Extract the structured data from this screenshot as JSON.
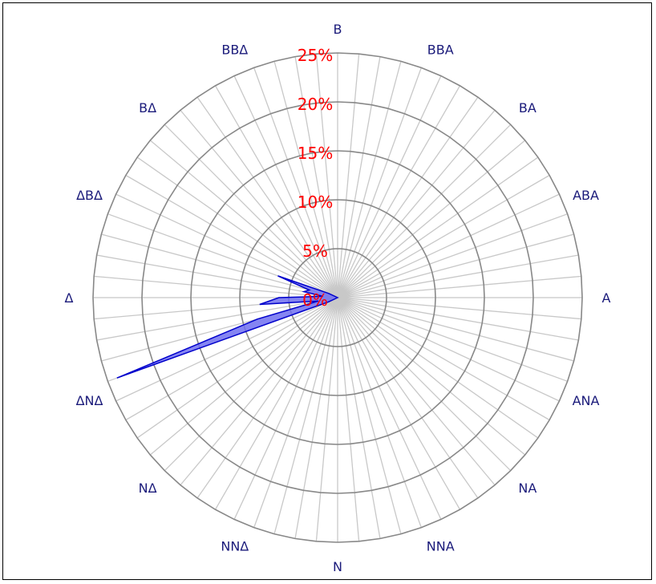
{
  "chart_data": {
    "type": "radar",
    "title": "",
    "direction_labels": [
      "B",
      "BBA",
      "BA",
      "ABA",
      "A",
      "ANA",
      "NA",
      "NNA",
      "N",
      "NNΔ",
      "NΔ",
      "ΔNΔ",
      "Δ",
      "ΔBΔ",
      "BΔ",
      "BBΔ"
    ],
    "ring_labels": [
      "0%",
      "5%",
      "10%",
      "15%",
      "20%",
      "25%"
    ],
    "rings": [
      5,
      10,
      15,
      20,
      25
    ],
    "rmax": 25,
    "spokes": 72,
    "series": [
      {
        "fill_color": "#7070f0",
        "stroke_color": "#0000cc",
        "points": [
          {
            "angle": 245,
            "value": 1.0
          },
          {
            "angle": 250,
            "value": 24.0
          },
          {
            "angle": 255,
            "value": 8.5
          },
          {
            "angle": 260,
            "value": 2.0
          },
          {
            "angle": 265,
            "value": 8.0
          },
          {
            "angle": 270,
            "value": 6.0
          },
          {
            "angle": 275,
            "value": 1.5
          },
          {
            "angle": 280,
            "value": 3.5
          },
          {
            "angle": 285,
            "value": 3.0
          },
          {
            "angle": 290,
            "value": 6.5
          },
          {
            "angle": 295,
            "value": 1.0
          }
        ]
      }
    ]
  },
  "colors": {
    "ring": "#888888",
    "spoke": "#c8c8c8",
    "direction_label": "#1a1a7a",
    "ring_label": "#ff0000"
  }
}
